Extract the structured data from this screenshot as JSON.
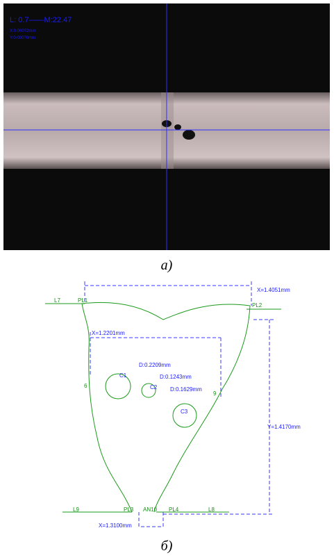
{
  "panel_a": {
    "overlay": [
      "L: 0.7——M:22.47",
      "X:0.000?2mm",
      "Y:0.000?0mm"
    ],
    "caption": "а)"
  },
  "panel_b": {
    "dimensions": [
      "X=1.4051mm",
      "X=1.2201mm",
      "Y=1.4170mm",
      "X=1.3100mm"
    ],
    "circles": [
      {
        "label": "C1",
        "diameter": "D:0.2209mm"
      },
      {
        "label": "C2",
        "diameter": "D:0.1243mm"
      },
      {
        "label": "C3",
        "diameter": "D:0.1629mm"
      }
    ],
    "lines": [
      "L7",
      "PL1",
      "PL2",
      "L9",
      "PL3",
      "AN10",
      "PL4",
      "L8"
    ],
    "points": [
      "6",
      "9"
    ],
    "caption": "б)"
  }
}
